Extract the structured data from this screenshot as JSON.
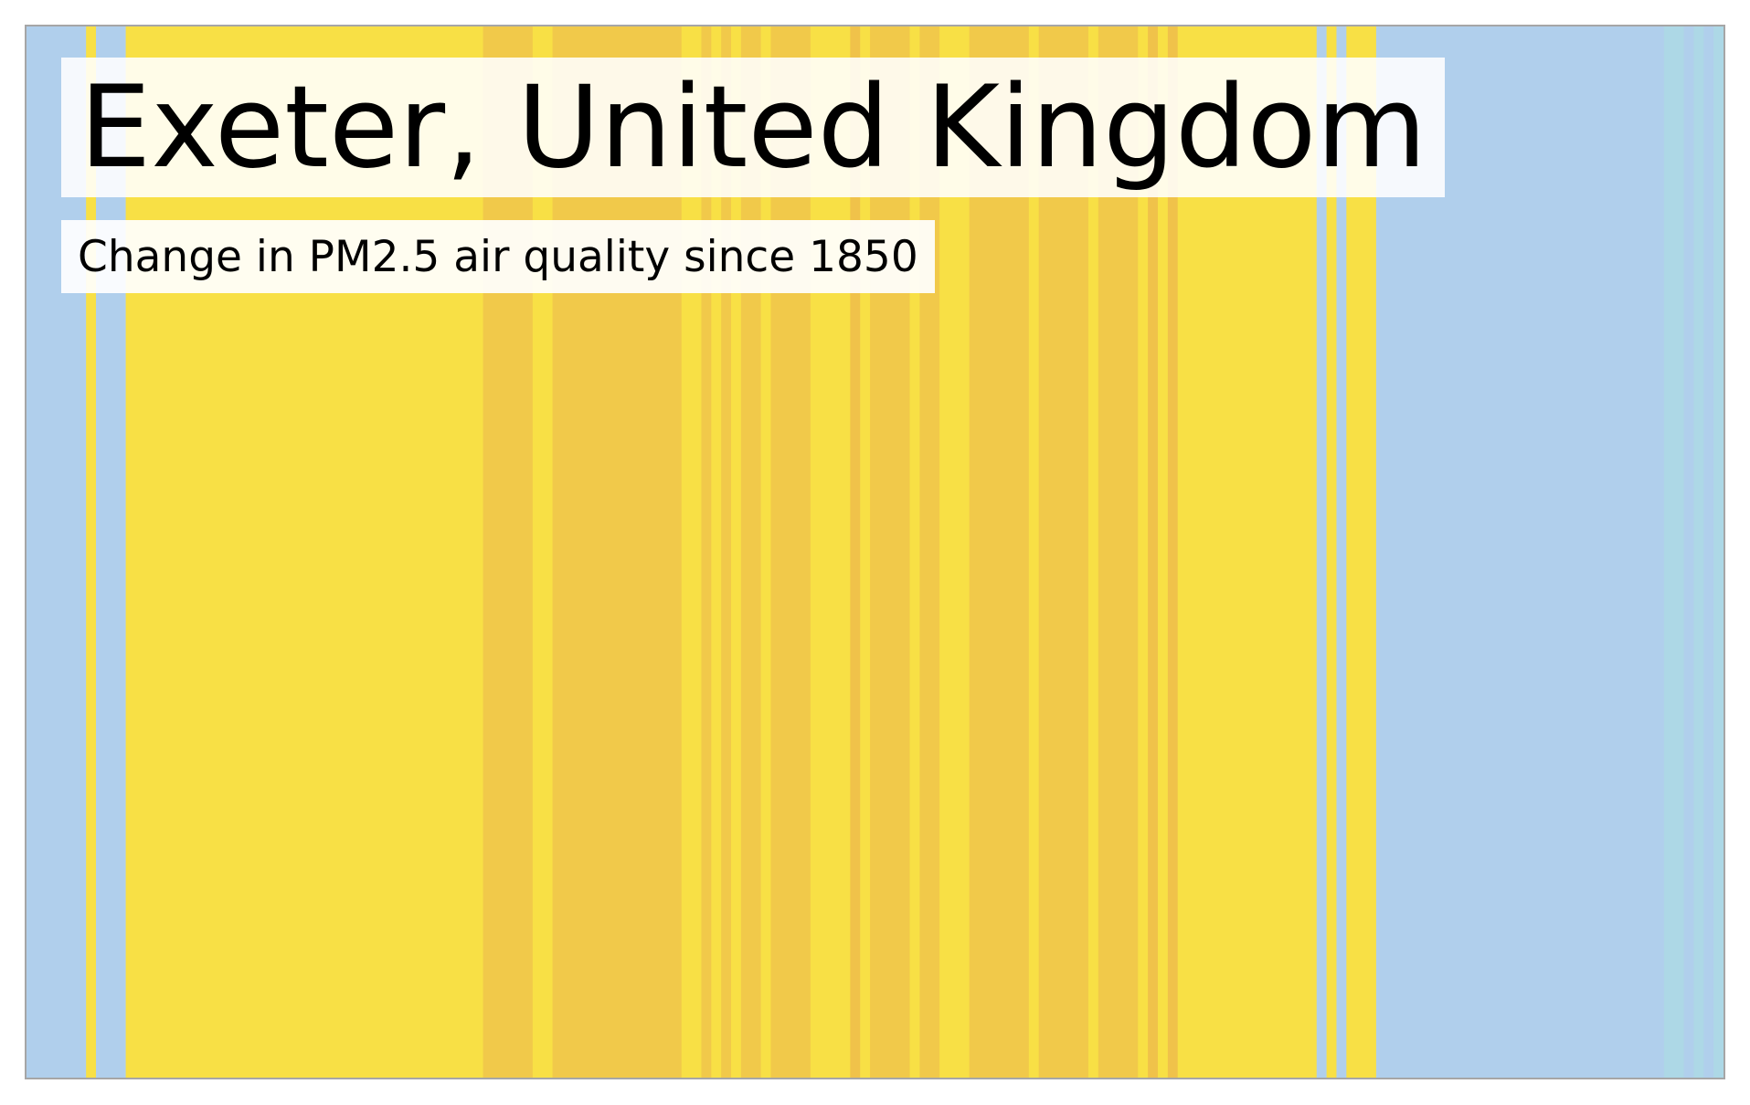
{
  "title": "Exeter, United Kingdom",
  "subtitle": "Change in PM2.5 air quality since 1850",
  "colors": {
    "light_blue": "#b0cfec",
    "pale_cyan": "#add8e6",
    "yellow": "#f8e045",
    "gold": "#f1c94a",
    "orange_gold": "#f0c24a",
    "frame_border": "#a6a6a6",
    "label_background": "#ffffff"
  },
  "chart_data": {
    "type": "heatmap",
    "encoding": "warming-stripes style: one vertical stripe per year, color keyed to PM2.5 level class",
    "x_range": [
      1850,
      2021
    ],
    "stripes": [
      {
        "from": 1850,
        "to": 1856,
        "color": "light_blue"
      },
      {
        "from": 1856,
        "to": 1857,
        "color": "yellow"
      },
      {
        "from": 1857,
        "to": 1860,
        "color": "light_blue"
      },
      {
        "from": 1860,
        "to": 1896,
        "color": "yellow"
      },
      {
        "from": 1896,
        "to": 1901,
        "color": "gold"
      },
      {
        "from": 1901,
        "to": 1903,
        "color": "yellow"
      },
      {
        "from": 1903,
        "to": 1916,
        "color": "gold"
      },
      {
        "from": 1916,
        "to": 1918,
        "color": "yellow"
      },
      {
        "from": 1918,
        "to": 1919,
        "color": "gold"
      },
      {
        "from": 1919,
        "to": 1920,
        "color": "yellow"
      },
      {
        "from": 1920,
        "to": 1921,
        "color": "gold"
      },
      {
        "from": 1921,
        "to": 1922,
        "color": "yellow"
      },
      {
        "from": 1922,
        "to": 1924,
        "color": "gold"
      },
      {
        "from": 1924,
        "to": 1925,
        "color": "yellow"
      },
      {
        "from": 1925,
        "to": 1929,
        "color": "gold"
      },
      {
        "from": 1929,
        "to": 1933,
        "color": "yellow"
      },
      {
        "from": 1933,
        "to": 1934,
        "color": "orange_gold"
      },
      {
        "from": 1934,
        "to": 1935,
        "color": "yellow"
      },
      {
        "from": 1935,
        "to": 1939,
        "color": "gold"
      },
      {
        "from": 1939,
        "to": 1940,
        "color": "yellow"
      },
      {
        "from": 1940,
        "to": 1942,
        "color": "gold"
      },
      {
        "from": 1942,
        "to": 1945,
        "color": "yellow"
      },
      {
        "from": 1945,
        "to": 1951,
        "color": "gold"
      },
      {
        "from": 1951,
        "to": 1952,
        "color": "yellow"
      },
      {
        "from": 1952,
        "to": 1957,
        "color": "gold"
      },
      {
        "from": 1957,
        "to": 1958,
        "color": "yellow"
      },
      {
        "from": 1958,
        "to": 1962,
        "color": "gold"
      },
      {
        "from": 1962,
        "to": 1963,
        "color": "yellow"
      },
      {
        "from": 1963,
        "to": 1964,
        "color": "orange_gold"
      },
      {
        "from": 1964,
        "to": 1965,
        "color": "yellow"
      },
      {
        "from": 1965,
        "to": 1966,
        "color": "orange_gold"
      },
      {
        "from": 1966,
        "to": 1980,
        "color": "yellow"
      },
      {
        "from": 1980,
        "to": 1981,
        "color": "light_blue"
      },
      {
        "from": 1981,
        "to": 1982,
        "color": "yellow"
      },
      {
        "from": 1982,
        "to": 1983,
        "color": "light_blue"
      },
      {
        "from": 1983,
        "to": 1986,
        "color": "yellow"
      },
      {
        "from": 1986,
        "to": 2015,
        "color": "light_blue"
      },
      {
        "from": 2015,
        "to": 2017,
        "color": "pale_cyan"
      },
      {
        "from": 2017,
        "to": 2018,
        "color": "light_blue"
      },
      {
        "from": 2018,
        "to": 2019,
        "color": "pale_cyan"
      },
      {
        "from": 2019,
        "to": 2020,
        "color": "light_blue"
      },
      {
        "from": 2020,
        "to": 2021,
        "color": "pale_cyan"
      }
    ]
  }
}
